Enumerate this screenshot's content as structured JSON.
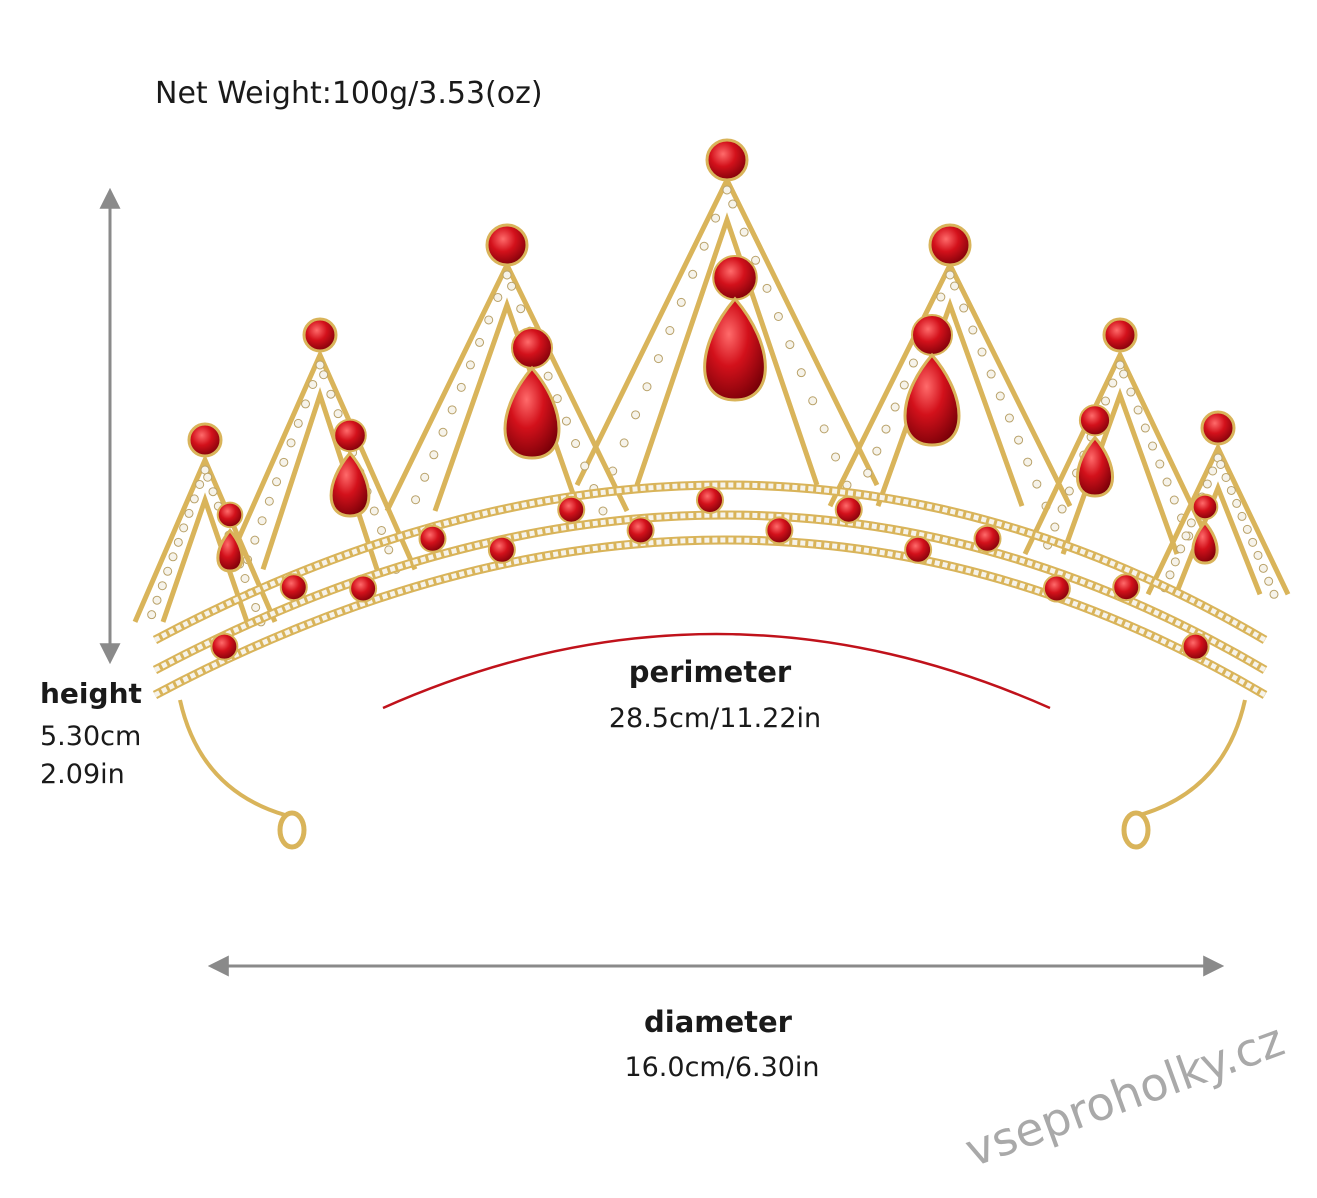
{
  "net_weight": "Net Weight:100g/3.53(oz)",
  "height": {
    "label": "height",
    "cm": "5.30cm",
    "in": "2.09in"
  },
  "perimeter": {
    "label": "perimeter",
    "value": "28.5cm/11.22in"
  },
  "diameter": {
    "label": "diameter",
    "value": "16.0cm/6.30in"
  },
  "watermark": "vseproholky.cz"
}
